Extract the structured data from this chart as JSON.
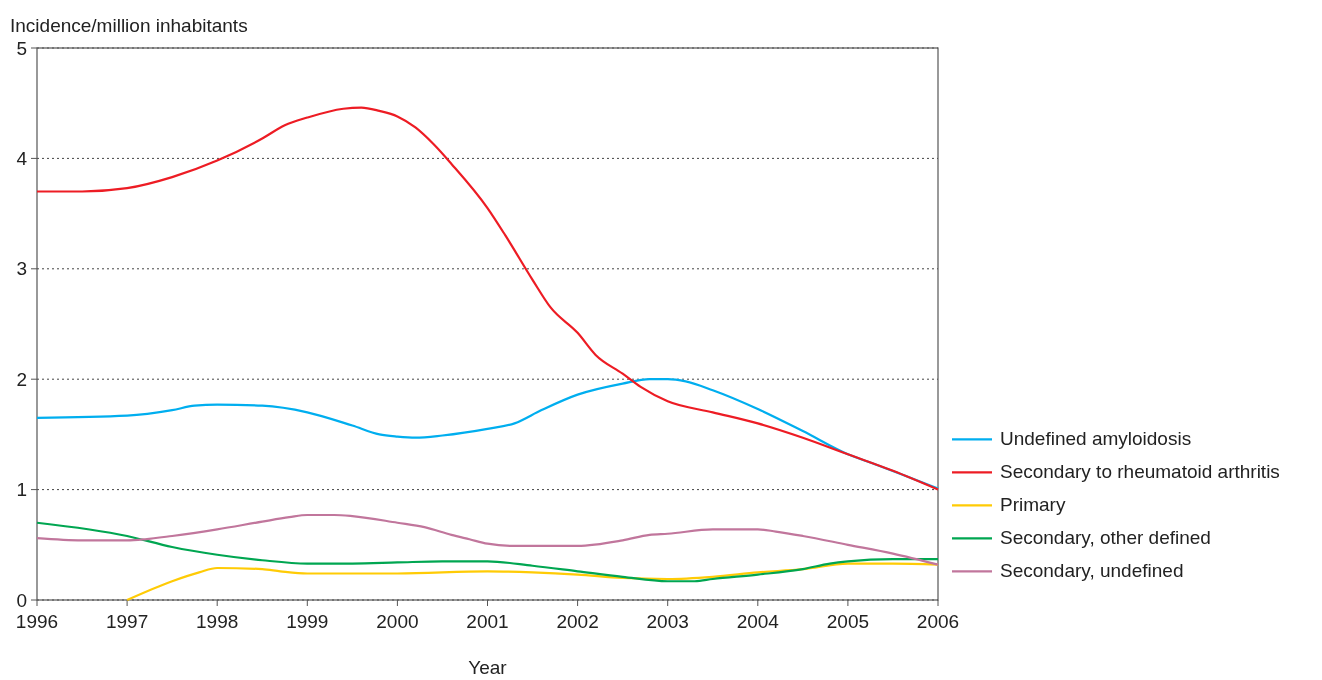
{
  "chart_data": {
    "type": "line",
    "ylabel": "Incidence/million inhabitants",
    "xlabel": "Year",
    "xlim": [
      1996,
      2006
    ],
    "xticks": [
      1996,
      1997,
      1998,
      1999,
      2000,
      2001,
      2002,
      2003,
      2004,
      2005,
      2006
    ],
    "ylim": [
      0,
      5
    ],
    "yticks": [
      0,
      1,
      2,
      3,
      4,
      5
    ],
    "grid": "y",
    "legend": "right",
    "line_style": "solid",
    "marker": "none",
    "series": [
      {
        "name": "Undefined amyloidosis",
        "color": "#00aeef",
        "x": [
          1996,
          1997,
          1997.5,
          1997.75,
          1998,
          1998.5,
          1999,
          1999.5,
          1999.8,
          2000,
          2000.2,
          2000.5,
          2001,
          2001.3,
          2001.6,
          2002,
          2002.5,
          2002.8,
          2003,
          2003.2,
          2003.5,
          2004,
          2004.5,
          2005,
          2005.3,
          2006
        ],
        "values": [
          1.65,
          1.67,
          1.72,
          1.76,
          1.77,
          1.76,
          1.7,
          1.58,
          1.5,
          1.48,
          1.47,
          1.49,
          1.55,
          1.6,
          1.72,
          1.86,
          1.96,
          2.0,
          2.0,
          1.98,
          1.9,
          1.73,
          1.53,
          1.32,
          1.23,
          1.01
        ]
      },
      {
        "name": "Secondary to rheumatoid arthritis",
        "color": "#ed1c24",
        "x": [
          1996,
          1996.5,
          1997,
          1997.5,
          1998,
          1998.5,
          1998.75,
          1999,
          1999.4,
          1999.6,
          1999.8,
          2000,
          2000.2,
          2000.4,
          2000.6,
          2001,
          2001.2,
          2001.5,
          2001.7,
          2002,
          2002.2,
          2002.5,
          2002.7,
          2003,
          2003.5,
          2004,
          2004.5,
          2005,
          2005.5,
          2006
        ],
        "values": [
          3.7,
          3.7,
          3.73,
          3.83,
          3.98,
          4.18,
          4.3,
          4.37,
          4.45,
          4.46,
          4.43,
          4.38,
          4.28,
          4.13,
          3.95,
          3.55,
          3.3,
          2.9,
          2.65,
          2.42,
          2.22,
          2.05,
          1.93,
          1.8,
          1.7,
          1.6,
          1.47,
          1.32,
          1.17,
          1.0
        ]
      },
      {
        "name": "Primary",
        "color": "#ffcb05",
        "x": [
          1997,
          1997.5,
          1997.8,
          1998,
          1998.5,
          1998.7,
          1999,
          2000,
          2001,
          2001.5,
          2002,
          2002.5,
          2003,
          2003.5,
          2004,
          2004.5,
          2005,
          2005.5,
          2006
        ],
        "values": [
          0,
          0.17,
          0.25,
          0.29,
          0.28,
          0.26,
          0.24,
          0.24,
          0.26,
          0.25,
          0.23,
          0.2,
          0.19,
          0.21,
          0.25,
          0.28,
          0.33,
          0.33,
          0.32
        ]
      },
      {
        "name": "Secondary, other defined",
        "color": "#00a651",
        "x": [
          1996,
          1997,
          1997.5,
          1998,
          1998.5,
          1999,
          1999.5,
          2000,
          2000.5,
          2001,
          2001.5,
          2002,
          2002.5,
          2003,
          2003.3,
          2003.5,
          2004,
          2004.5,
          2004.8,
          2005,
          2005.5,
          2006
        ],
        "values": [
          0.7,
          0.58,
          0.48,
          0.41,
          0.36,
          0.33,
          0.33,
          0.34,
          0.35,
          0.35,
          0.31,
          0.26,
          0.21,
          0.17,
          0.17,
          0.19,
          0.23,
          0.28,
          0.33,
          0.35,
          0.37,
          0.37
        ]
      },
      {
        "name": "Secondary, undefined",
        "color": "#c1769c",
        "x": [
          1996,
          1996.5,
          1997,
          1997.2,
          1997.5,
          1998,
          1998.5,
          1998.8,
          1999,
          1999.3,
          1999.5,
          2000,
          2000.3,
          2000.6,
          2000.8,
          2001,
          2001.3,
          2002,
          2002.5,
          2002.8,
          2003,
          2003.5,
          2004,
          2004.2,
          2004.5,
          2005,
          2005.5,
          2006
        ],
        "values": [
          0.56,
          0.54,
          0.54,
          0.55,
          0.58,
          0.64,
          0.71,
          0.75,
          0.77,
          0.77,
          0.76,
          0.7,
          0.66,
          0.59,
          0.55,
          0.51,
          0.49,
          0.49,
          0.54,
          0.59,
          0.6,
          0.64,
          0.64,
          0.62,
          0.58,
          0.5,
          0.42,
          0.32
        ]
      }
    ]
  }
}
